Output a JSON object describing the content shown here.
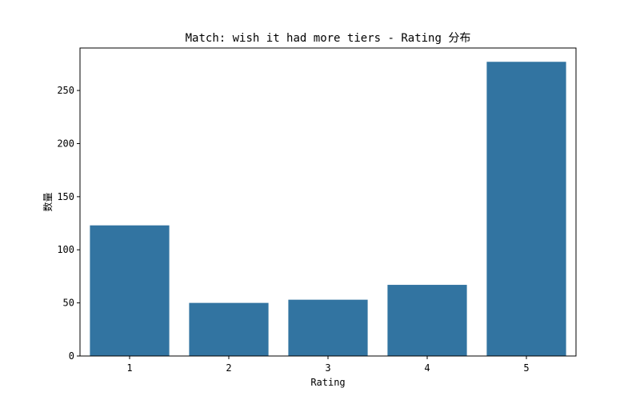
{
  "chart_data": {
    "type": "bar",
    "title": "Match: wish it had more tiers - Rating 分布",
    "xlabel": "Rating",
    "ylabel": "数量",
    "categories": [
      "1",
      "2",
      "3",
      "4",
      "5"
    ],
    "values": [
      123,
      50,
      53,
      67,
      277
    ],
    "ylim": [
      0,
      290
    ],
    "yticks": [
      0,
      50,
      100,
      150,
      200,
      250
    ],
    "bar_color": "#3274a1",
    "grid": false,
    "legend": "none"
  }
}
